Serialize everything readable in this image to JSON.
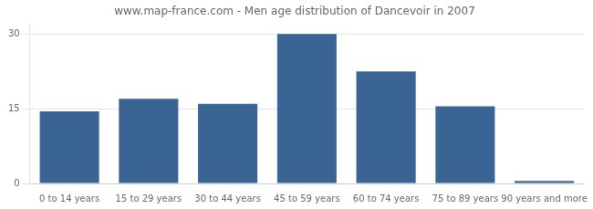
{
  "chart_data": {
    "type": "bar",
    "title": "www.map-france.com - Men age distribution of Dancevoir in 2007",
    "categories": [
      "0 to 14 years",
      "15 to 29 years",
      "30 to 44 years",
      "45 to 59 years",
      "60 to 74 years",
      "75 to 89 years",
      "90 years and more"
    ],
    "values": [
      14.5,
      17.0,
      16.0,
      30.0,
      22.5,
      15.5,
      0.5
    ],
    "color": "#3a6494",
    "ylim": [
      0,
      32
    ],
    "yticks": [
      0,
      15,
      30
    ],
    "grid": true
  }
}
